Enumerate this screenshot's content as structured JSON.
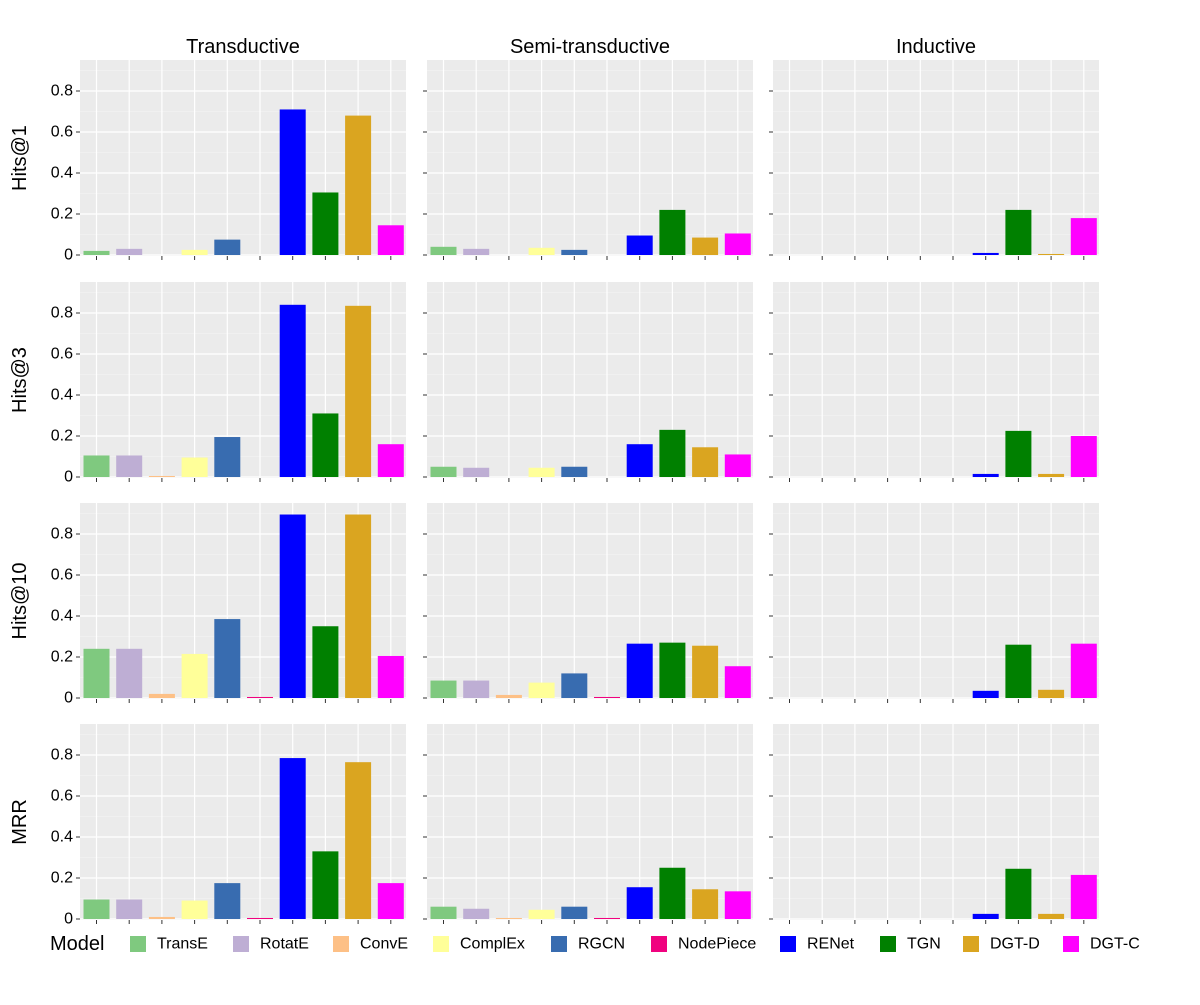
{
  "chart_data": {
    "type": "bar",
    "facet_columns": [
      "Transductive",
      "Semi-transductive",
      "Inductive"
    ],
    "facet_rows": [
      "Hits@1",
      "Hits@3",
      "Hits@10",
      "MRR"
    ],
    "ylim": [
      0,
      0.95
    ],
    "yticks": [
      0,
      0.2,
      0.4,
      0.6,
      0.8
    ],
    "ytick_labels": [
      "0",
      "0.2",
      "0.4",
      "0.6",
      "0.8"
    ],
    "grid": true,
    "legend": {
      "title": "Model",
      "position": "bottom"
    },
    "series": [
      {
        "name": "TransE",
        "color": "#7fc97f"
      },
      {
        "name": "RotatE",
        "color": "#beaed4"
      },
      {
        "name": "ConvE",
        "color": "#fdc086"
      },
      {
        "name": "ComplEx",
        "color": "#ffff99"
      },
      {
        "name": "RGCN",
        "color": "#386cb0"
      },
      {
        "name": "NodePiece",
        "color": "#f0027f"
      },
      {
        "name": "RENet",
        "color": "#0000ff"
      },
      {
        "name": "TGN",
        "color": "#008000"
      },
      {
        "name": "DGT-D",
        "color": "#daa520"
      },
      {
        "name": "DGT-C",
        "color": "#ff00ff"
      }
    ],
    "values": {
      "Hits@1": {
        "Transductive": [
          0.02,
          0.03,
          0.0,
          0.025,
          0.075,
          0.0,
          0.71,
          0.305,
          0.68,
          0.145
        ],
        "Semi-transductive": [
          0.04,
          0.03,
          0.0,
          0.035,
          0.025,
          0.0,
          0.095,
          0.22,
          0.085,
          0.105
        ],
        "Inductive": [
          0.0,
          0.0,
          0.0,
          0.0,
          0.0,
          0.0,
          0.01,
          0.22,
          0.005,
          0.18
        ]
      },
      "Hits@3": {
        "Transductive": [
          0.105,
          0.105,
          0.005,
          0.095,
          0.195,
          0.0,
          0.84,
          0.31,
          0.835,
          0.16
        ],
        "Semi-transductive": [
          0.05,
          0.045,
          0.0,
          0.045,
          0.05,
          0.0,
          0.16,
          0.23,
          0.145,
          0.11
        ],
        "Inductive": [
          0.0,
          0.0,
          0.0,
          0.0,
          0.0,
          0.0,
          0.015,
          0.225,
          0.015,
          0.2
        ]
      },
      "Hits@10": {
        "Transductive": [
          0.24,
          0.24,
          0.02,
          0.215,
          0.385,
          0.005,
          0.895,
          0.35,
          0.895,
          0.205
        ],
        "Semi-transductive": [
          0.085,
          0.085,
          0.015,
          0.075,
          0.12,
          0.005,
          0.265,
          0.27,
          0.255,
          0.155
        ],
        "Inductive": [
          0.0,
          0.0,
          0.0,
          0.0,
          0.0,
          0.0,
          0.035,
          0.26,
          0.04,
          0.265
        ]
      },
      "MRR": {
        "Transductive": [
          0.095,
          0.095,
          0.01,
          0.09,
          0.175,
          0.005,
          0.785,
          0.33,
          0.765,
          0.175
        ],
        "Semi-transductive": [
          0.06,
          0.05,
          0.005,
          0.045,
          0.06,
          0.005,
          0.155,
          0.25,
          0.145,
          0.135
        ],
        "Inductive": [
          0.0,
          0.0,
          0.0,
          0.0,
          0.0,
          0.0,
          0.025,
          0.245,
          0.025,
          0.215
        ]
      }
    }
  }
}
